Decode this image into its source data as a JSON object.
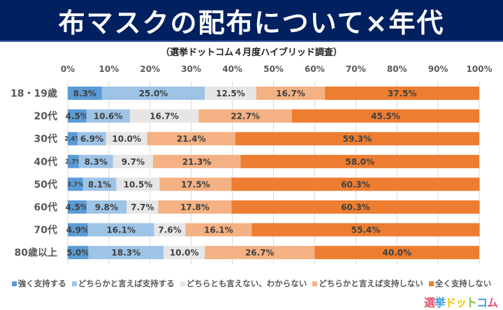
{
  "header": {
    "title": "布マスクの配布について×年代"
  },
  "subtitle": "（選挙ドットコム４月度ハイブリッド調査）",
  "logo": {
    "chars": [
      {
        "ch": "選",
        "color": "#e8506e"
      },
      {
        "ch": "挙",
        "color": "#3aa0e0"
      },
      {
        "ch": "ド",
        "color": "#f2c200"
      },
      {
        "ch": "ッ",
        "color": "#f2c200"
      },
      {
        "ch": "ト",
        "color": "#7cc243"
      },
      {
        "ch": "コ",
        "color": "#3aa0e0"
      },
      {
        "ch": "ム",
        "color": "#e8506e"
      }
    ]
  },
  "chart_data": {
    "type": "bar",
    "orientation": "horizontal",
    "stacked": true,
    "title": "布マスクの配布について×年代",
    "subtitle": "（選挙ドットコム４月度ハイブリッド調査）",
    "xlim": [
      0,
      100
    ],
    "x_ticks": [
      "0%",
      "10%",
      "20%",
      "30%",
      "40%",
      "50%",
      "60%",
      "70%",
      "80%",
      "90%",
      "100%"
    ],
    "grid": true,
    "legend_position": "bottom",
    "categories": [
      "18・19歳",
      "20代",
      "30代",
      "40代",
      "50代",
      "60代",
      "70代",
      "80歳以上"
    ],
    "series": [
      {
        "name": "強く支持する",
        "color": "#5b9bd5",
        "values": [
          8.3,
          4.5,
          2.4,
          2.7,
          3.7,
          4.5,
          4.9,
          5.0
        ]
      },
      {
        "name": "どちらかと言えば支持する",
        "color": "#9dc3e6",
        "values": [
          25.0,
          10.6,
          6.9,
          8.3,
          8.1,
          9.8,
          16.1,
          18.3
        ]
      },
      {
        "name": "どちらとも言えない、わからない",
        "color": "#e7e6e6",
        "values": [
          12.5,
          16.7,
          10.0,
          9.7,
          10.5,
          7.7,
          7.6,
          10.0
        ]
      },
      {
        "name": "どちらかと言えば支持しない",
        "color": "#f4b183",
        "values": [
          16.7,
          22.7,
          21.4,
          21.3,
          17.5,
          17.8,
          16.1,
          26.7
        ]
      },
      {
        "name": "全く支持しない",
        "color": "#ed7d31",
        "values": [
          37.5,
          45.5,
          59.3,
          58.0,
          60.3,
          60.3,
          55.4,
          40.0
        ]
      }
    ]
  }
}
